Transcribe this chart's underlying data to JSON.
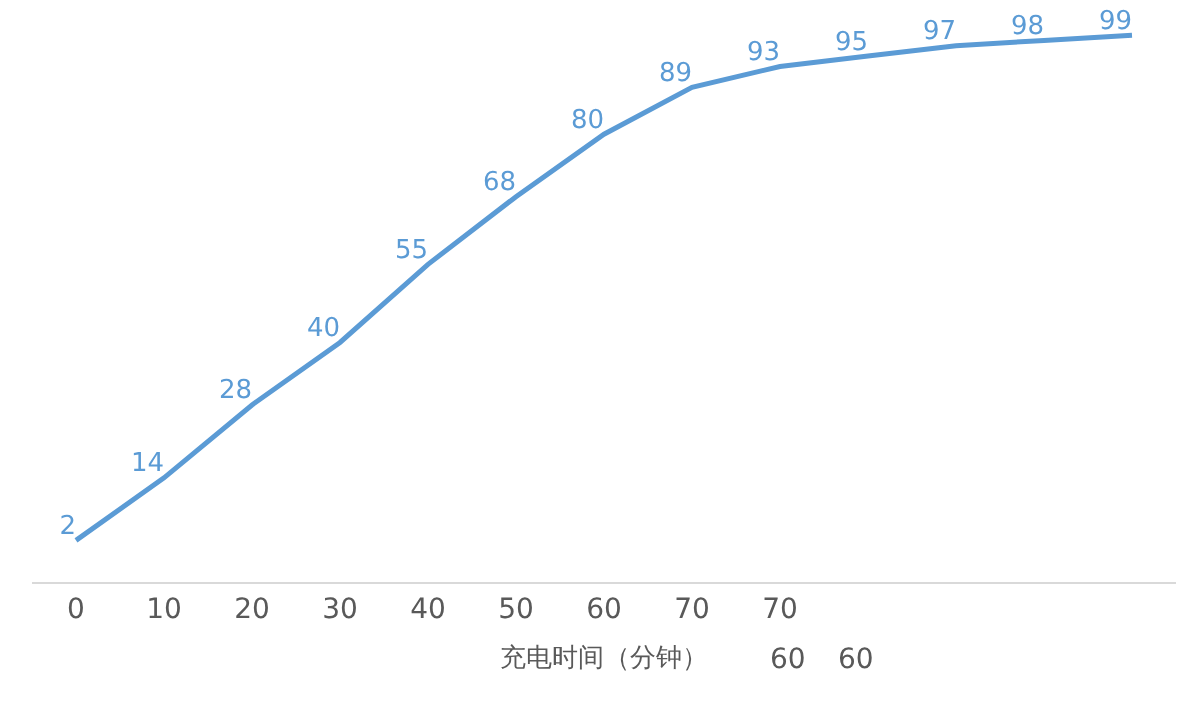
{
  "chart_data": {
    "type": "line",
    "xlabel": "充电时间（分钟）",
    "categories": [
      "0",
      "10",
      "20",
      "30",
      "40",
      "50",
      "60",
      "70",
      "70",
      null,
      null,
      null,
      null
    ],
    "series": [
      {
        "color": "#5b9bd5",
        "values": [
          2,
          14,
          28,
          40,
          55,
          68,
          80,
          89,
          93,
          95,
          97,
          98,
          99
        ]
      }
    ],
    "data_labels": true,
    "ylim": [
      -6,
      105
    ],
    "tick_labels": "x",
    "line_style": "solid",
    "annotations": [
      "60",
      "60"
    ]
  }
}
